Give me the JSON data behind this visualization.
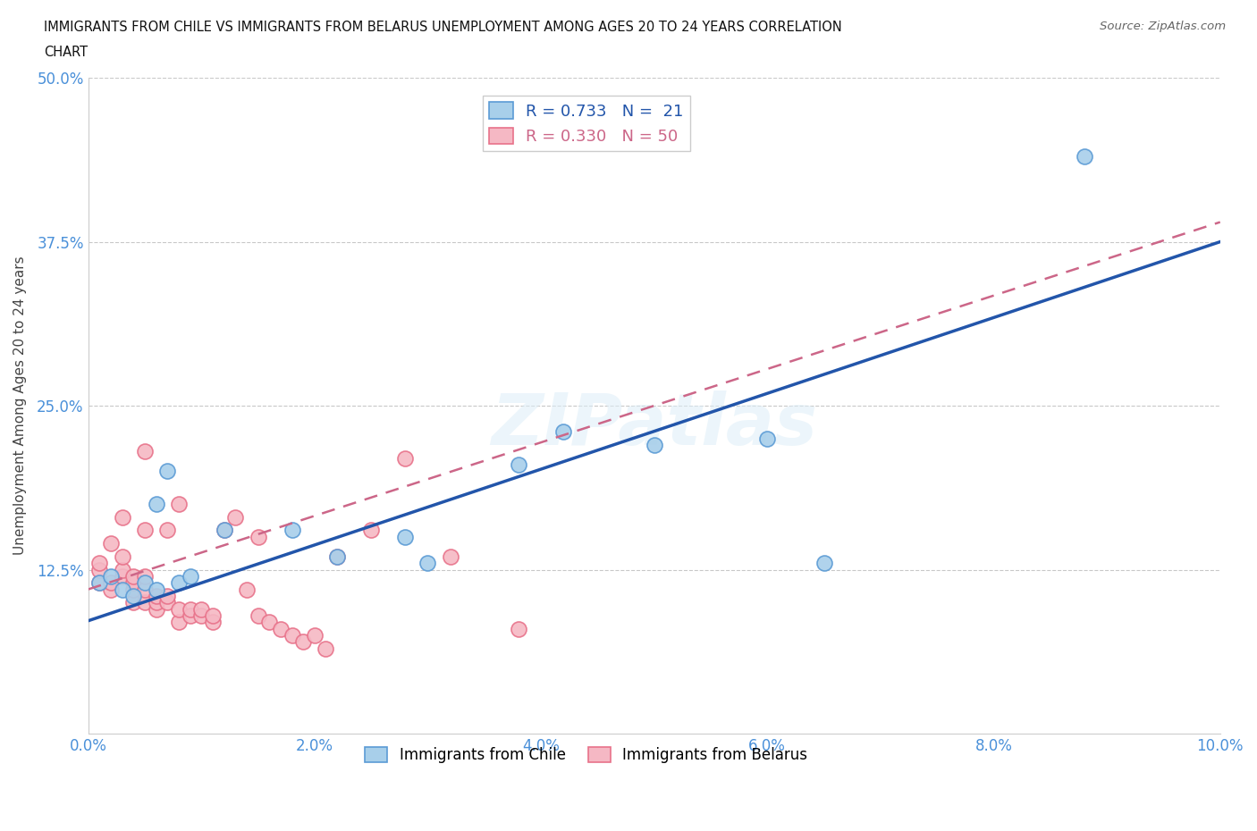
{
  "title_line1": "IMMIGRANTS FROM CHILE VS IMMIGRANTS FROM BELARUS UNEMPLOYMENT AMONG AGES 20 TO 24 YEARS CORRELATION",
  "title_line2": "CHART",
  "source": "Source: ZipAtlas.com",
  "ylabel": "Unemployment Among Ages 20 to 24 years",
  "xlabel": "",
  "xlim": [
    0.0,
    0.1
  ],
  "ylim": [
    0.0,
    0.5
  ],
  "xticks": [
    0.0,
    0.02,
    0.04,
    0.06,
    0.08,
    0.1
  ],
  "xtick_labels": [
    "0.0%",
    "2.0%",
    "4.0%",
    "6.0%",
    "8.0%",
    "10.0%"
  ],
  "yticks": [
    0.0,
    0.125,
    0.25,
    0.375,
    0.5
  ],
  "ytick_labels": [
    "",
    "12.5%",
    "25.0%",
    "37.5%",
    "50.0%"
  ],
  "chile_color": "#A8CFEA",
  "chile_edge_color": "#5B9BD5",
  "belarus_color": "#F5B8C4",
  "belarus_edge_color": "#E8728A",
  "trend_chile_color": "#2255AA",
  "trend_belarus_color": "#CC6688",
  "R_chile": 0.733,
  "N_chile": 21,
  "R_belarus": 0.33,
  "N_belarus": 50,
  "watermark": "ZIPatlas",
  "legend_R_chile": "R = 0.733",
  "legend_N_chile": "N =  21",
  "legend_R_belarus": "R = 0.330",
  "legend_N_belarus": "N = 50",
  "chile_x": [
    0.001,
    0.002,
    0.003,
    0.004,
    0.005,
    0.006,
    0.006,
    0.007,
    0.008,
    0.009,
    0.012,
    0.018,
    0.022,
    0.028,
    0.03,
    0.038,
    0.042,
    0.05,
    0.06,
    0.065,
    0.088
  ],
  "chile_y": [
    0.115,
    0.12,
    0.11,
    0.105,
    0.115,
    0.11,
    0.175,
    0.2,
    0.115,
    0.12,
    0.155,
    0.155,
    0.135,
    0.15,
    0.13,
    0.205,
    0.23,
    0.22,
    0.225,
    0.13,
    0.44
  ],
  "belarus_x": [
    0.001,
    0.001,
    0.001,
    0.002,
    0.002,
    0.002,
    0.003,
    0.003,
    0.003,
    0.003,
    0.004,
    0.004,
    0.004,
    0.004,
    0.005,
    0.005,
    0.005,
    0.005,
    0.005,
    0.006,
    0.006,
    0.006,
    0.007,
    0.007,
    0.007,
    0.008,
    0.008,
    0.008,
    0.009,
    0.009,
    0.01,
    0.01,
    0.011,
    0.011,
    0.012,
    0.013,
    0.014,
    0.015,
    0.015,
    0.016,
    0.017,
    0.018,
    0.019,
    0.02,
    0.021,
    0.022,
    0.025,
    0.028,
    0.032,
    0.038
  ],
  "belarus_y": [
    0.115,
    0.125,
    0.13,
    0.11,
    0.115,
    0.145,
    0.12,
    0.125,
    0.135,
    0.165,
    0.1,
    0.11,
    0.115,
    0.12,
    0.1,
    0.11,
    0.12,
    0.215,
    0.155,
    0.095,
    0.1,
    0.105,
    0.1,
    0.105,
    0.155,
    0.085,
    0.095,
    0.175,
    0.09,
    0.095,
    0.09,
    0.095,
    0.085,
    0.09,
    0.155,
    0.165,
    0.11,
    0.09,
    0.15,
    0.085,
    0.08,
    0.075,
    0.07,
    0.075,
    0.065,
    0.135,
    0.155,
    0.21,
    0.135,
    0.08
  ],
  "trend_chile_x0": 0.0,
  "trend_chile_y0": 0.086,
  "trend_chile_x1": 0.1,
  "trend_chile_y1": 0.375,
  "trend_belarus_x0": 0.0,
  "trend_belarus_y0": 0.11,
  "trend_belarus_x1": 0.1,
  "trend_belarus_y1": 0.39
}
